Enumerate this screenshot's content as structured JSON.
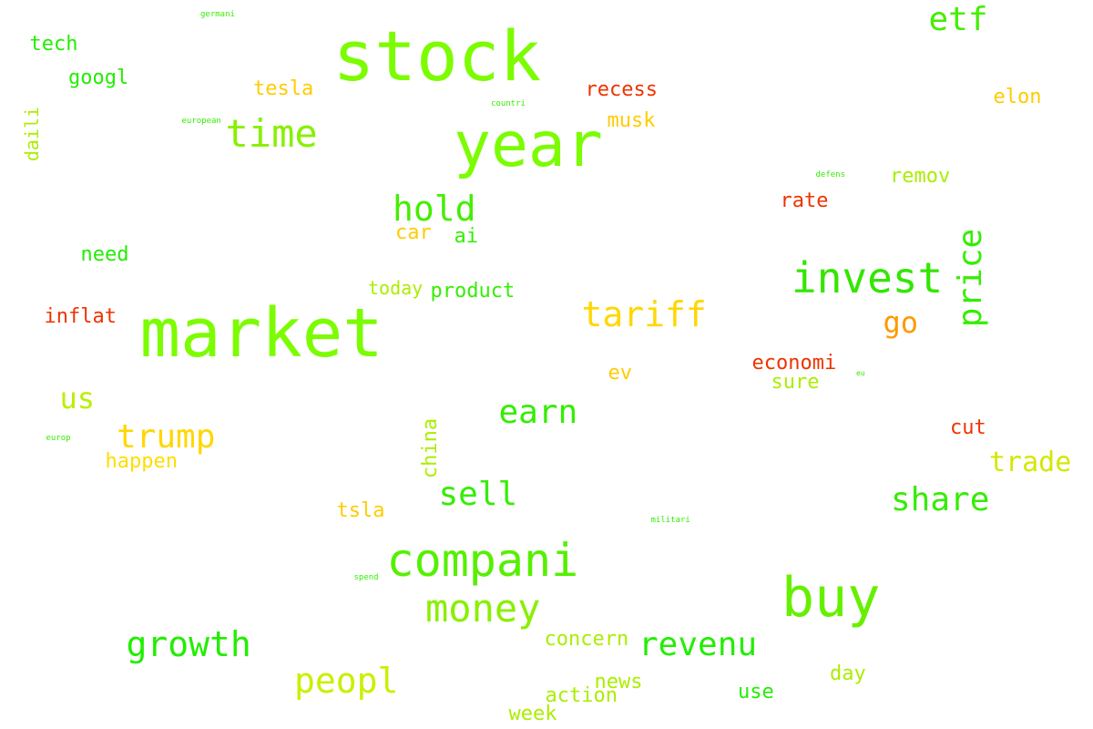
{
  "words": [
    {
      "text": "market",
      "color": "#7CFC00"
    },
    {
      "text": "stock",
      "color": "#7CFC00"
    },
    {
      "text": "year",
      "color": "#7CFC00"
    },
    {
      "text": "buy",
      "color": "#66F000"
    },
    {
      "text": "compani",
      "color": "#55F000"
    },
    {
      "text": "invest",
      "color": "#33E600"
    },
    {
      "text": "money",
      "color": "#88F000"
    },
    {
      "text": "time",
      "color": "#88F000"
    },
    {
      "text": "tariff",
      "color": "#FFD700"
    },
    {
      "text": "hold",
      "color": "#44EE00"
    },
    {
      "text": "price",
      "color": "#33EE00"
    },
    {
      "text": "peopl",
      "color": "#C8F000"
    },
    {
      "text": "growth",
      "color": "#22EE00"
    },
    {
      "text": "revenu",
      "color": "#22EE00"
    },
    {
      "text": "trump",
      "color": "#FFD700"
    },
    {
      "text": "etf",
      "color": "#44EE00"
    },
    {
      "text": "earn",
      "color": "#33EE00"
    },
    {
      "text": "share",
      "color": "#33EE00"
    },
    {
      "text": "sell",
      "color": "#33EE00"
    },
    {
      "text": "go",
      "color": "#FF9900"
    },
    {
      "text": "us",
      "color": "#B8F000"
    },
    {
      "text": "trade",
      "color": "#D4E800"
    },
    {
      "text": "tech",
      "color": "#22EE00"
    },
    {
      "text": "googl",
      "color": "#22EE00"
    },
    {
      "text": "tesla",
      "color": "#FFCC00"
    },
    {
      "text": "recess",
      "color": "#EE3300"
    },
    {
      "text": "musk",
      "color": "#FFCC00"
    },
    {
      "text": "elon",
      "color": "#FFCC00"
    },
    {
      "text": "remov",
      "color": "#AAEE00"
    },
    {
      "text": "rate",
      "color": "#EE3300"
    },
    {
      "text": "need",
      "color": "#22EE00"
    },
    {
      "text": "car",
      "color": "#FFCC00"
    },
    {
      "text": "ai",
      "color": "#33EE00"
    },
    {
      "text": "today",
      "color": "#AAEE00"
    },
    {
      "text": "product",
      "color": "#33EE00"
    },
    {
      "text": "inflat",
      "color": "#EE3300"
    },
    {
      "text": "economi",
      "color": "#EE3300"
    },
    {
      "text": "sure",
      "color": "#AAEE00"
    },
    {
      "text": "ev",
      "color": "#FFCC00"
    },
    {
      "text": "cut",
      "color": "#EE3300"
    },
    {
      "text": "happen",
      "color": "#FFDD00"
    },
    {
      "text": "china",
      "color": "#AAEE00"
    },
    {
      "text": "tsla",
      "color": "#FFCC00"
    },
    {
      "text": "concern",
      "color": "#AAEE00"
    },
    {
      "text": "news",
      "color": "#AAEE00"
    },
    {
      "text": "action",
      "color": "#AAEE00"
    },
    {
      "text": "week",
      "color": "#AAEE00"
    },
    {
      "text": "use",
      "color": "#22EE00"
    },
    {
      "text": "day",
      "color": "#AAEE00"
    },
    {
      "text": "daili",
      "color": "#AAEE00"
    },
    {
      "text": "germani",
      "color": "#33EE00"
    },
    {
      "text": "countri",
      "color": "#33EE00"
    },
    {
      "text": "european",
      "color": "#33EE00"
    },
    {
      "text": "defens",
      "color": "#33EE00"
    },
    {
      "text": "eu",
      "color": "#33EE00"
    },
    {
      "text": "europ",
      "color": "#33EE00"
    },
    {
      "text": "militari",
      "color": "#33EE00"
    },
    {
      "text": "spend",
      "color": "#33EE00"
    }
  ]
}
